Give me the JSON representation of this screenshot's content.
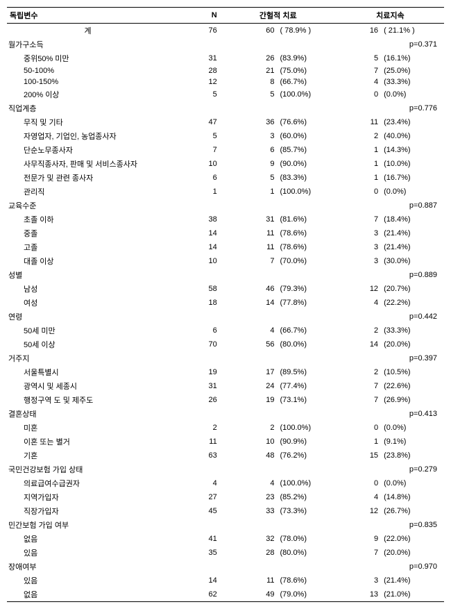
{
  "headers": {
    "var": "독립변수",
    "n": "N",
    "intermittent": "간헐적 치료",
    "continuous": "치료지속"
  },
  "total": {
    "label": "계",
    "n": 76,
    "int_n": 60,
    "int_p": "( 78.9% )",
    "cont_n": 16,
    "cont_p": "( 21.1% )"
  },
  "groups": [
    {
      "label": "월가구소득",
      "pval": "p=0.371",
      "rows": [
        {
          "label": "중위50% 미만",
          "n": 31,
          "int_n": 26,
          "int_p": "(83.9%)",
          "cont_n": 5,
          "cont_p": "(16.1%)"
        },
        {
          "label": "50-100%",
          "n": 28,
          "int_n": 21,
          "int_p": "(75.0%)",
          "cont_n": 7,
          "cont_p": "(25.0%)"
        },
        {
          "label": "100-150%",
          "n": 12,
          "int_n": 8,
          "int_p": "(66.7%)",
          "cont_n": 4,
          "cont_p": "(33.3%)"
        },
        {
          "label": "200% 이상",
          "n": 5,
          "int_n": 5,
          "int_p": "(100.0%)",
          "cont_n": 0,
          "cont_p": "(0.0%)"
        }
      ]
    },
    {
      "label": "직업계층",
      "pval": "p=0.776",
      "rows": [
        {
          "label": "무직 및 기타",
          "n": 47,
          "int_n": 36,
          "int_p": "(76.6%)",
          "cont_n": 11,
          "cont_p": "(23.4%)"
        },
        {
          "label": "자영업자, 기업인, 농업종사자",
          "n": 5,
          "int_n": 3,
          "int_p": "(60.0%)",
          "cont_n": 2,
          "cont_p": "(40.0%)"
        },
        {
          "label": "단순노무종사자",
          "n": 7,
          "int_n": 6,
          "int_p": "(85.7%)",
          "cont_n": 1,
          "cont_p": "(14.3%)"
        },
        {
          "label": "사무직종사자, 판매 및 서비스종사자",
          "n": 10,
          "int_n": 9,
          "int_p": "(90.0%)",
          "cont_n": 1,
          "cont_p": "(10.0%)"
        },
        {
          "label": "전문가 및 관련 종사자",
          "n": 6,
          "int_n": 5,
          "int_p": "(83.3%)",
          "cont_n": 1,
          "cont_p": "(16.7%)"
        },
        {
          "label": "관리직",
          "n": 1,
          "int_n": 1,
          "int_p": "(100.0%)",
          "cont_n": 0,
          "cont_p": "(0.0%)"
        }
      ]
    },
    {
      "label": "교육수준",
      "pval": "p=0.887",
      "rows": [
        {
          "label": "초졸 이하",
          "n": 38,
          "int_n": 31,
          "int_p": "(81.6%)",
          "cont_n": 7,
          "cont_p": "(18.4%)"
        },
        {
          "label": "중졸",
          "n": 14,
          "int_n": 11,
          "int_p": "(78.6%)",
          "cont_n": 3,
          "cont_p": "(21.4%)"
        },
        {
          "label": "고졸",
          "n": 14,
          "int_n": 11,
          "int_p": "(78.6%)",
          "cont_n": 3,
          "cont_p": "(21.4%)"
        },
        {
          "label": "대졸 이상",
          "n": 10,
          "int_n": 7,
          "int_p": "(70.0%)",
          "cont_n": 3,
          "cont_p": "(30.0%)"
        }
      ]
    },
    {
      "label": "성별",
      "pval": "p=0.889",
      "rows": [
        {
          "label": "남성",
          "n": 58,
          "int_n": 46,
          "int_p": "(79.3%)",
          "cont_n": 12,
          "cont_p": "(20.7%)"
        },
        {
          "label": "여성",
          "n": 18,
          "int_n": 14,
          "int_p": "(77.8%)",
          "cont_n": 4,
          "cont_p": "(22.2%)"
        }
      ]
    },
    {
      "label": "연령",
      "pval": "p=0.442",
      "rows": [
        {
          "label": "50세 미만",
          "n": 6,
          "int_n": 4,
          "int_p": "(66.7%)",
          "cont_n": 2,
          "cont_p": "(33.3%)"
        },
        {
          "label": "50세 이상",
          "n": 70,
          "int_n": 56,
          "int_p": "(80.0%)",
          "cont_n": 14,
          "cont_p": "(20.0%)"
        }
      ]
    },
    {
      "label": "거주지",
      "pval": "p=0.397",
      "rows": [
        {
          "label": "서울특별시",
          "n": 19,
          "int_n": 17,
          "int_p": "(89.5%)",
          "cont_n": 2,
          "cont_p": "(10.5%)"
        },
        {
          "label": "광역시 및 세종시",
          "n": 31,
          "int_n": 24,
          "int_p": "(77.4%)",
          "cont_n": 7,
          "cont_p": "(22.6%)"
        },
        {
          "label": "행정구역 도 및 제주도",
          "n": 26,
          "int_n": 19,
          "int_p": "(73.1%)",
          "cont_n": 7,
          "cont_p": "(26.9%)"
        }
      ]
    },
    {
      "label": "결혼상태",
      "pval": "p=0.413",
      "rows": [
        {
          "label": "미혼",
          "n": 2,
          "int_n": 2,
          "int_p": "(100.0%)",
          "cont_n": 0,
          "cont_p": "(0.0%)"
        },
        {
          "label": "이혼 또는 별거",
          "n": 11,
          "int_n": 10,
          "int_p": "(90.9%)",
          "cont_n": 1,
          "cont_p": "(9.1%)"
        },
        {
          "label": "기혼",
          "n": 63,
          "int_n": 48,
          "int_p": "(76.2%)",
          "cont_n": 15,
          "cont_p": "(23.8%)"
        }
      ]
    },
    {
      "label": "국민건강보험 가입 상태",
      "pval": "p=0.279",
      "rows": [
        {
          "label": "의료급여수급권자",
          "n": 4,
          "int_n": 4,
          "int_p": "(100.0%)",
          "cont_n": 0,
          "cont_p": "(0.0%)"
        },
        {
          "label": "지역가입자",
          "n": 27,
          "int_n": 23,
          "int_p": "(85.2%)",
          "cont_n": 4,
          "cont_p": "(14.8%)"
        },
        {
          "label": "직장가입자",
          "n": 45,
          "int_n": 33,
          "int_p": "(73.3%)",
          "cont_n": 12,
          "cont_p": "(26.7%)"
        }
      ]
    },
    {
      "label": "민간보험 가입 여부",
      "pval": "p=0.835",
      "rows": [
        {
          "label": "없음",
          "n": 41,
          "int_n": 32,
          "int_p": "(78.0%)",
          "cont_n": 9,
          "cont_p": "(22.0%)"
        },
        {
          "label": "있음",
          "n": 35,
          "int_n": 28,
          "int_p": "(80.0%)",
          "cont_n": 7,
          "cont_p": "(20.0%)"
        }
      ]
    },
    {
      "label": "장애여부",
      "pval": "p=0.970",
      "rows": [
        {
          "label": "있음",
          "n": 14,
          "int_n": 11,
          "int_p": "(78.6%)",
          "cont_n": 3,
          "cont_p": "(21.4%)"
        },
        {
          "label": "없음",
          "n": 62,
          "int_n": 49,
          "int_p": "(79.0%)",
          "cont_n": 13,
          "cont_p": "(21.0%)"
        }
      ]
    }
  ]
}
